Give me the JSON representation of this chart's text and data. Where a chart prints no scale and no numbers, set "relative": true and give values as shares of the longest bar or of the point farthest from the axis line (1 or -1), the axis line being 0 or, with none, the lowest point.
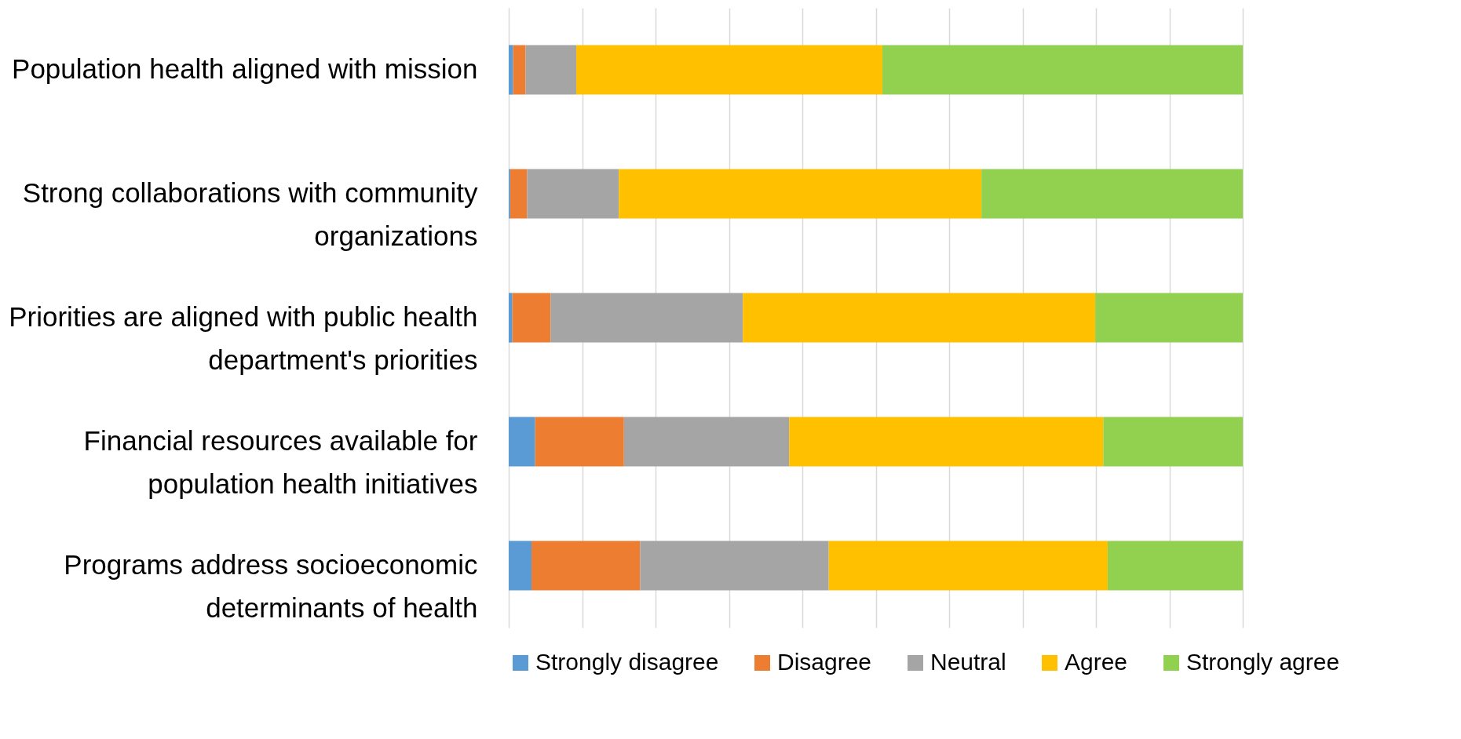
{
  "chart_data": {
    "type": "bar",
    "orientation": "horizontal",
    "stacked": true,
    "relative": true,
    "grid": "x",
    "legend": "bottom",
    "categories": [
      "Population health aligned with mission",
      "Strong collaborations with community organizations",
      "Priorities are aligned with public health department's priorities",
      "Financial resources available for population health initiatives",
      "Programs address socioeconomic determinants of health"
    ],
    "series": [
      {
        "name": "Strongly disagree",
        "color": "#5b9bd5",
        "values": [
          0.006,
          0.002,
          0.005,
          0.036,
          0.031
        ]
      },
      {
        "name": "Disagree",
        "color": "#ed7d31",
        "values": [
          0.017,
          0.023,
          0.052,
          0.121,
          0.148
        ]
      },
      {
        "name": "Neutral",
        "color": "#a5a5a5",
        "values": [
          0.069,
          0.125,
          0.262,
          0.225,
          0.257
        ]
      },
      {
        "name": "Agree",
        "color": "#ffc000",
        "values": [
          0.417,
          0.494,
          0.48,
          0.428,
          0.38
        ]
      },
      {
        "name": "Strongly agree",
        "color": "#92d050",
        "values": [
          0.491,
          0.356,
          0.201,
          0.19,
          0.184
        ]
      }
    ]
  }
}
